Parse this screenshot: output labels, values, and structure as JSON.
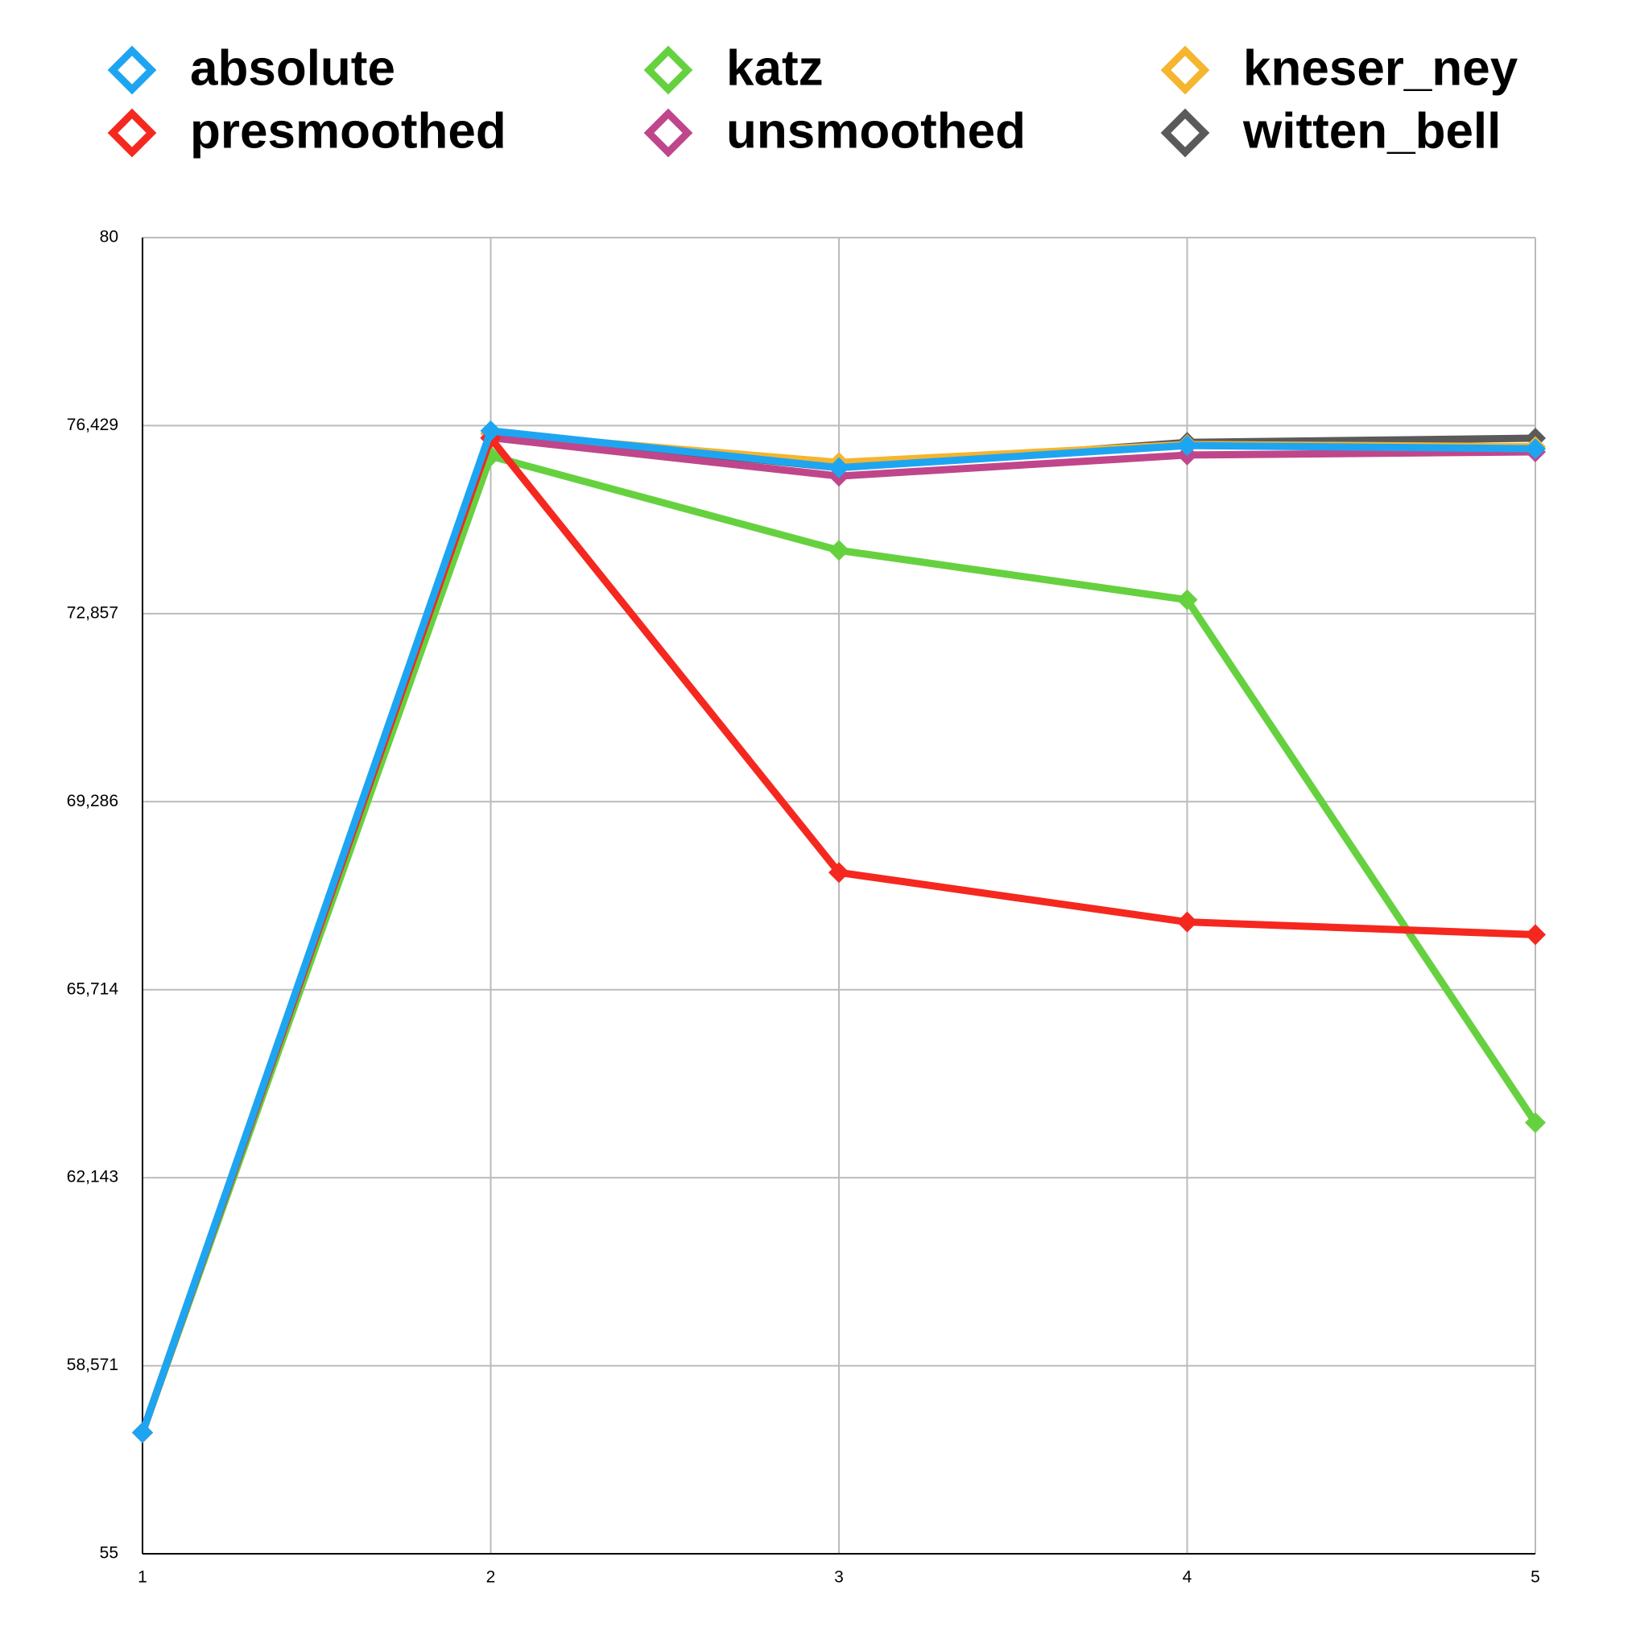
{
  "chart_data": {
    "type": "line",
    "x": [
      1,
      2,
      3,
      4,
      5
    ],
    "xlim": [
      1,
      5
    ],
    "xticks": [
      1,
      2,
      3,
      4,
      5
    ],
    "ylim": [
      55,
      80
    ],
    "yticks": [
      55,
      {
        "value": 58.571,
        "label": "58,571"
      },
      {
        "value": 62.143,
        "label": "62,143"
      },
      {
        "value": 65.714,
        "label": "65,714"
      },
      {
        "value": 69.286,
        "label": "69,286"
      },
      {
        "value": 72.857,
        "label": "72,857"
      },
      {
        "value": 76.429,
        "label": "76,429"
      },
      80
    ],
    "grid": true,
    "series": [
      {
        "name": "absolute",
        "color": "#1ea5f2",
        "values": [
          57.3,
          76.33,
          75.63,
          76.05,
          75.99
        ]
      },
      {
        "name": "katz",
        "color": "#66d13f",
        "values": [
          57.3,
          75.85,
          74.06,
          73.12,
          63.19
        ]
      },
      {
        "name": "kneser_ney",
        "color": "#f5b52e",
        "values": [
          57.3,
          76.28,
          75.73,
          76.07,
          76.03
        ]
      },
      {
        "name": "presmoothed",
        "color": "#f5281f",
        "values": [
          57.3,
          76.19,
          67.94,
          67.0,
          66.76
        ]
      },
      {
        "name": "unsmoothed",
        "color": "#c0468b",
        "values": [
          57.3,
          76.2,
          75.47,
          75.87,
          75.93
        ]
      },
      {
        "name": "witten_bell",
        "color": "#5a5a5a",
        "values": [
          57.3,
          76.28,
          75.63,
          76.11,
          76.19
        ]
      }
    ]
  }
}
